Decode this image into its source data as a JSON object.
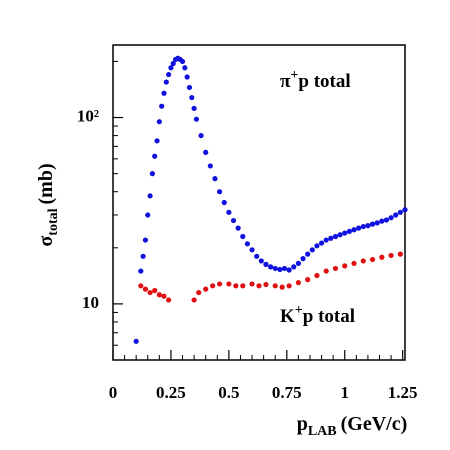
{
  "chart_data": {
    "type": "scatter",
    "xlabel": {
      "symbol": "p",
      "subscript": "LAB",
      "unit": "(GeV/c)"
    },
    "ylabel": {
      "symbol": "σ",
      "subscript": "total",
      "unit": "(mb)"
    },
    "ylog": true,
    "xlim": [
      0,
      1.26
    ],
    "ylim": [
      5,
      245
    ],
    "xticks": [
      0,
      0.25,
      0.5,
      0.75,
      1,
      1.25
    ],
    "xminor_ticks": [
      0.05,
      0.1,
      0.15,
      0.2,
      0.3,
      0.35,
      0.4,
      0.45,
      0.55,
      0.6,
      0.65,
      0.7,
      0.8,
      0.85,
      0.9,
      0.95,
      1.05,
      1.1,
      1.15,
      1.2
    ],
    "yticks": [
      10,
      {
        "value": 100,
        "label": "10²"
      }
    ],
    "yminor_ticks": [
      6,
      7,
      8,
      9,
      20,
      30,
      40,
      50,
      60,
      70,
      80,
      90,
      200
    ],
    "annotations": [
      {
        "parts": [
          "π",
          "+",
          "p total"
        ]
      },
      {
        "parts": [
          "K",
          "+",
          "p total"
        ]
      }
    ],
    "series": [
      {
        "name": "π+p total",
        "color": "#1010e0",
        "x": [
          0.1,
          0.12,
          0.13,
          0.14,
          0.15,
          0.16,
          0.17,
          0.18,
          0.19,
          0.2,
          0.21,
          0.22,
          0.23,
          0.24,
          0.25,
          0.26,
          0.27,
          0.28,
          0.29,
          0.3,
          0.31,
          0.32,
          0.33,
          0.34,
          0.35,
          0.36,
          0.38,
          0.4,
          0.42,
          0.44,
          0.46,
          0.48,
          0.5,
          0.52,
          0.54,
          0.56,
          0.58,
          0.6,
          0.62,
          0.64,
          0.66,
          0.68,
          0.7,
          0.72,
          0.74,
          0.76,
          0.78,
          0.8,
          0.82,
          0.84,
          0.86,
          0.88,
          0.9,
          0.92,
          0.94,
          0.96,
          0.98,
          1.0,
          1.02,
          1.04,
          1.06,
          1.08,
          1.1,
          1.12,
          1.14,
          1.16,
          1.18,
          1.2,
          1.22,
          1.24,
          1.26
        ],
        "values": [
          6.3,
          15,
          18,
          22,
          30,
          38,
          50,
          62,
          75,
          95,
          115,
          135,
          155,
          170,
          185,
          195,
          205,
          208,
          205,
          200,
          185,
          165,
          145,
          128,
          112,
          98,
          80,
          65,
          55,
          47,
          40,
          35,
          31,
          28,
          25.5,
          23,
          21,
          19.5,
          18,
          17,
          16.3,
          15.8,
          15.5,
          15.3,
          15.5,
          15.2,
          15.8,
          16.5,
          17.5,
          18.5,
          19.5,
          20.5,
          21.2,
          22,
          22.5,
          23,
          23.5,
          24,
          24.5,
          25,
          25.5,
          26,
          26.3,
          26.8,
          27.2,
          27.8,
          28.2,
          29,
          30,
          31,
          32
        ]
      },
      {
        "name": "K+p total",
        "color": "#e01010",
        "x": [
          0.12,
          0.14,
          0.16,
          0.18,
          0.2,
          0.22,
          0.24,
          0.35,
          0.37,
          0.4,
          0.43,
          0.46,
          0.5,
          0.53,
          0.56,
          0.6,
          0.63,
          0.66,
          0.7,
          0.73,
          0.76,
          0.8,
          0.84,
          0.88,
          0.92,
          0.96,
          1.0,
          1.04,
          1.08,
          1.12,
          1.16,
          1.2,
          1.24
        ],
        "values": [
          12.5,
          12,
          11.5,
          11.8,
          11.2,
          11,
          10.5,
          10.5,
          11.5,
          12,
          12.5,
          12.8,
          12.8,
          12.5,
          12.5,
          12.8,
          12.5,
          12.7,
          12.5,
          12.3,
          12.5,
          13,
          13.5,
          14.2,
          15,
          15.5,
          16,
          16.5,
          17,
          17.3,
          17.8,
          18.2,
          18.5
        ]
      }
    ]
  }
}
